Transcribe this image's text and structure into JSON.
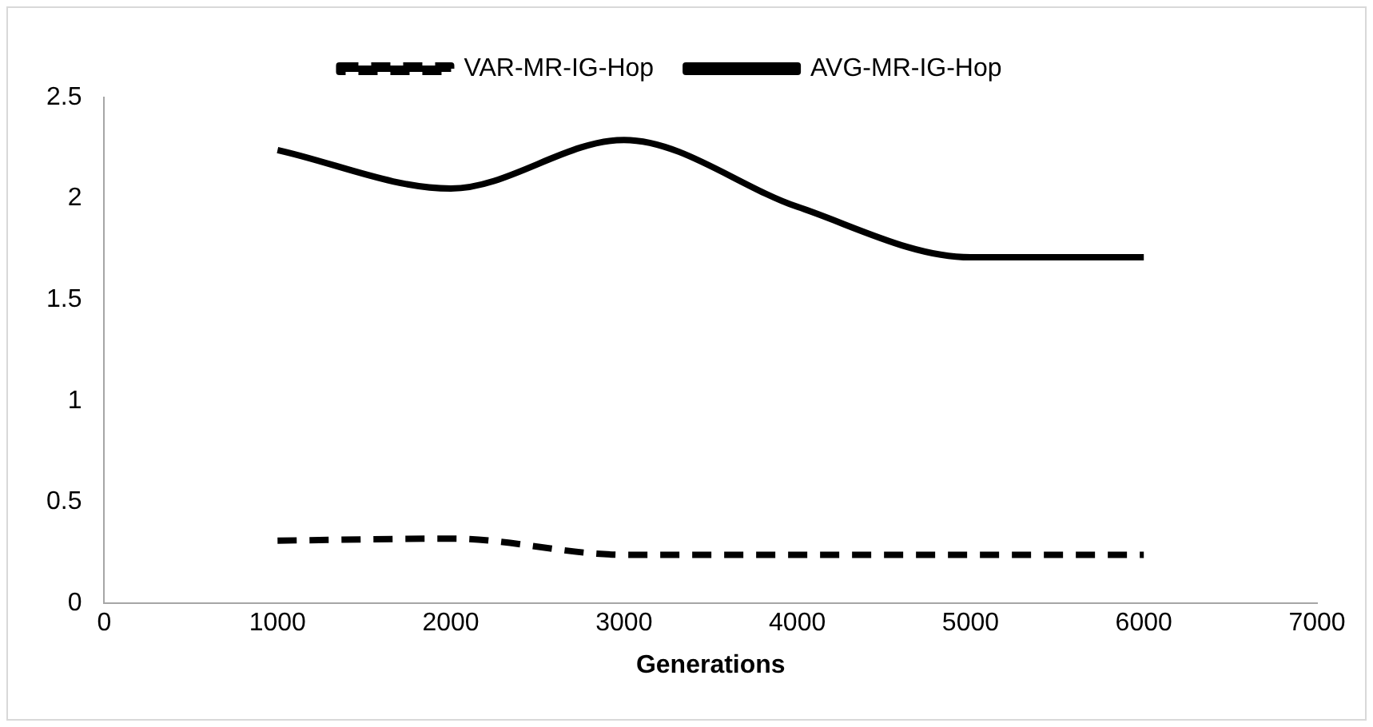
{
  "chart_data": {
    "type": "line",
    "xlabel": "Generations",
    "x": [
      1000,
      2000,
      3000,
      4000,
      5000,
      6000
    ],
    "series": [
      {
        "name": "VAR-MR-IG-Hop",
        "color": "#000000",
        "line_style": "dashed",
        "values": [
          0.31,
          0.32,
          0.24,
          0.24,
          0.24,
          0.24
        ]
      },
      {
        "name": "AVG-MR-IG-Hop",
        "color": "#000000",
        "line_style": "solid",
        "values": [
          2.24,
          2.05,
          2.29,
          1.96,
          1.71,
          1.71
        ]
      }
    ],
    "xlim": [
      0,
      7000
    ],
    "xticks": [
      0,
      1000,
      2000,
      3000,
      4000,
      5000,
      6000,
      7000
    ],
    "ylim": [
      0,
      2.5
    ],
    "yticks": [
      0,
      0.5,
      1,
      1.5,
      2,
      2.5
    ],
    "grid": false,
    "legend": "top",
    "marker": "none"
  }
}
